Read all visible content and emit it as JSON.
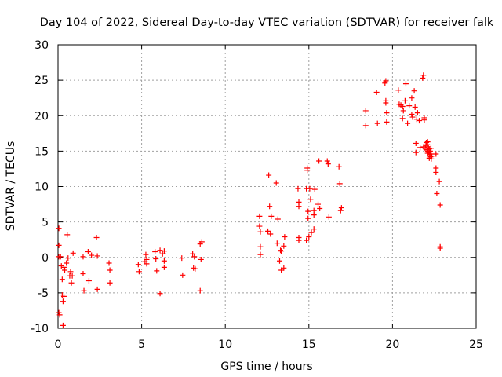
{
  "chart_data": {
    "type": "scatter",
    "title": "Day 104 of 2022, Sidereal Day-to-day VTEC variation (SDTVAR) for receiver falk",
    "xlabel": "GPS time / hours",
    "ylabel": "SDTVAR / TECUs",
    "xlim": [
      0,
      25
    ],
    "ylim": [
      -10,
      30
    ],
    "xticks": [
      0,
      5,
      10,
      15,
      20,
      25
    ],
    "yticks": [
      -10,
      -5,
      0,
      5,
      10,
      15,
      20,
      25,
      30
    ],
    "grid": true,
    "marker": "+",
    "color": "#ff0000",
    "series": [
      {
        "name": "SDTVAR",
        "points": [
          [
            0.05,
            4.1
          ],
          [
            0.05,
            1.7
          ],
          [
            0.05,
            0.1
          ],
          [
            0.05,
            -7.8
          ],
          [
            0.1,
            -8.1
          ],
          [
            0.15,
            0.1
          ],
          [
            0.2,
            -1.2
          ],
          [
            0.25,
            -3.1
          ],
          [
            0.25,
            -5.3
          ],
          [
            0.3,
            -6.2
          ],
          [
            0.3,
            -9.6
          ],
          [
            0.35,
            -5.5
          ],
          [
            0.35,
            -1.4
          ],
          [
            0.4,
            -1.8
          ],
          [
            0.5,
            -0.8
          ],
          [
            0.55,
            3.2
          ],
          [
            0.6,
            -0.1
          ],
          [
            0.7,
            -2.6
          ],
          [
            0.75,
            -2.0
          ],
          [
            0.8,
            -3.6
          ],
          [
            0.85,
            -2.6
          ],
          [
            0.9,
            0.6
          ],
          [
            1.5,
            0.1
          ],
          [
            1.5,
            -2.3
          ],
          [
            1.55,
            -4.7
          ],
          [
            1.8,
            0.8
          ],
          [
            1.85,
            -3.3
          ],
          [
            2.0,
            0.3
          ],
          [
            2.3,
            2.8
          ],
          [
            2.35,
            0.2
          ],
          [
            2.35,
            -4.5
          ],
          [
            3.05,
            -0.8
          ],
          [
            3.1,
            -1.8
          ],
          [
            3.1,
            -3.6
          ],
          [
            4.8,
            -1.0
          ],
          [
            4.85,
            -2.0
          ],
          [
            5.2,
            -0.6
          ],
          [
            5.25,
            0.4
          ],
          [
            5.3,
            -0.3
          ],
          [
            5.3,
            -0.9
          ],
          [
            5.8,
            0.8
          ],
          [
            5.85,
            -0.2
          ],
          [
            5.9,
            -1.9
          ],
          [
            6.1,
            -5.1
          ],
          [
            6.1,
            1.0
          ],
          [
            6.25,
            0.5
          ],
          [
            6.35,
            -0.5
          ],
          [
            6.35,
            -1.4
          ],
          [
            6.35,
            0.9
          ],
          [
            7.4,
            -0.1
          ],
          [
            7.45,
            -2.5
          ],
          [
            8.05,
            0.5
          ],
          [
            8.1,
            -1.5
          ],
          [
            8.15,
            0.1
          ],
          [
            8.2,
            -1.6
          ],
          [
            8.5,
            -4.7
          ],
          [
            8.5,
            1.9
          ],
          [
            8.55,
            -0.3
          ],
          [
            8.6,
            2.2
          ],
          [
            12.05,
            5.8
          ],
          [
            12.05,
            4.4
          ],
          [
            12.1,
            1.5
          ],
          [
            12.1,
            0.4
          ],
          [
            12.1,
            3.6
          ],
          [
            12.55,
            3.7
          ],
          [
            12.6,
            11.6
          ],
          [
            12.65,
            7.2
          ],
          [
            12.7,
            3.3
          ],
          [
            12.75,
            5.8
          ],
          [
            13.05,
            10.5
          ],
          [
            13.1,
            2.0
          ],
          [
            13.15,
            5.4
          ],
          [
            13.25,
            -0.5
          ],
          [
            13.3,
            1.0
          ],
          [
            13.35,
            0.9
          ],
          [
            13.35,
            -1.8
          ],
          [
            13.5,
            -1.5
          ],
          [
            13.5,
            1.6
          ],
          [
            13.55,
            2.9
          ],
          [
            14.35,
            9.7
          ],
          [
            14.4,
            2.8
          ],
          [
            14.4,
            2.4
          ],
          [
            14.4,
            7.8
          ],
          [
            14.4,
            7.2
          ],
          [
            14.85,
            9.7
          ],
          [
            14.85,
            2.4
          ],
          [
            14.9,
            12.6
          ],
          [
            14.9,
            12.3
          ],
          [
            14.95,
            6.5
          ],
          [
            14.95,
            5.5
          ],
          [
            15.0,
            2.9
          ],
          [
            15.05,
            9.7
          ],
          [
            15.1,
            8.2
          ],
          [
            15.15,
            3.5
          ],
          [
            15.3,
            6.0
          ],
          [
            15.3,
            4.0
          ],
          [
            15.3,
            6.6
          ],
          [
            15.35,
            9.6
          ],
          [
            15.55,
            7.5
          ],
          [
            15.6,
            13.6
          ],
          [
            15.65,
            6.9
          ],
          [
            16.1,
            13.6
          ],
          [
            16.15,
            13.2
          ],
          [
            16.2,
            5.7
          ],
          [
            16.8,
            12.8
          ],
          [
            16.85,
            10.4
          ],
          [
            16.9,
            6.6
          ],
          [
            16.95,
            7.0
          ],
          [
            18.4,
            20.7
          ],
          [
            18.4,
            18.6
          ],
          [
            19.05,
            23.3
          ],
          [
            19.1,
            18.9
          ],
          [
            19.55,
            24.6
          ],
          [
            19.6,
            24.9
          ],
          [
            19.6,
            22.1
          ],
          [
            19.6,
            21.8
          ],
          [
            19.65,
            20.4
          ],
          [
            19.65,
            19.1
          ],
          [
            20.35,
            23.6
          ],
          [
            20.4,
            21.6
          ],
          [
            20.5,
            21.5
          ],
          [
            20.6,
            19.6
          ],
          [
            20.6,
            21.3
          ],
          [
            20.65,
            20.7
          ],
          [
            20.75,
            22.1
          ],
          [
            20.8,
            24.5
          ],
          [
            20.9,
            18.9
          ],
          [
            21.0,
            21.4
          ],
          [
            21.15,
            22.5
          ],
          [
            21.15,
            20.2
          ],
          [
            21.2,
            19.8
          ],
          [
            21.3,
            23.5
          ],
          [
            21.35,
            21.2
          ],
          [
            21.4,
            16.1
          ],
          [
            21.4,
            14.8
          ],
          [
            21.45,
            19.5
          ],
          [
            21.5,
            20.4
          ],
          [
            21.6,
            19.3
          ],
          [
            21.65,
            15.5
          ],
          [
            21.8,
            25.3
          ],
          [
            21.85,
            25.7
          ],
          [
            21.85,
            15.6
          ],
          [
            21.9,
            19.7
          ],
          [
            21.9,
            19.4
          ],
          [
            21.95,
            15.4
          ],
          [
            22.0,
            15.8
          ],
          [
            22.02,
            16.2
          ],
          [
            22.05,
            15.2
          ],
          [
            22.08,
            15.9
          ],
          [
            22.1,
            16.3
          ],
          [
            22.12,
            15.0
          ],
          [
            22.15,
            15.6
          ],
          [
            22.18,
            14.8
          ],
          [
            22.2,
            15.3
          ],
          [
            22.22,
            14.5
          ],
          [
            22.25,
            15.0
          ],
          [
            22.28,
            14.2
          ],
          [
            22.3,
            14.6
          ],
          [
            22.32,
            13.9
          ],
          [
            22.35,
            14.3
          ],
          [
            22.1,
            14.7
          ],
          [
            22.2,
            14.0
          ],
          [
            22.3,
            15.4
          ],
          [
            22.6,
            14.6
          ],
          [
            22.6,
            12.6
          ],
          [
            22.6,
            12.0
          ],
          [
            22.65,
            9.0
          ],
          [
            22.8,
            10.7
          ],
          [
            22.85,
            7.4
          ],
          [
            22.85,
            1.5
          ],
          [
            22.85,
            1.3
          ]
        ]
      }
    ]
  }
}
